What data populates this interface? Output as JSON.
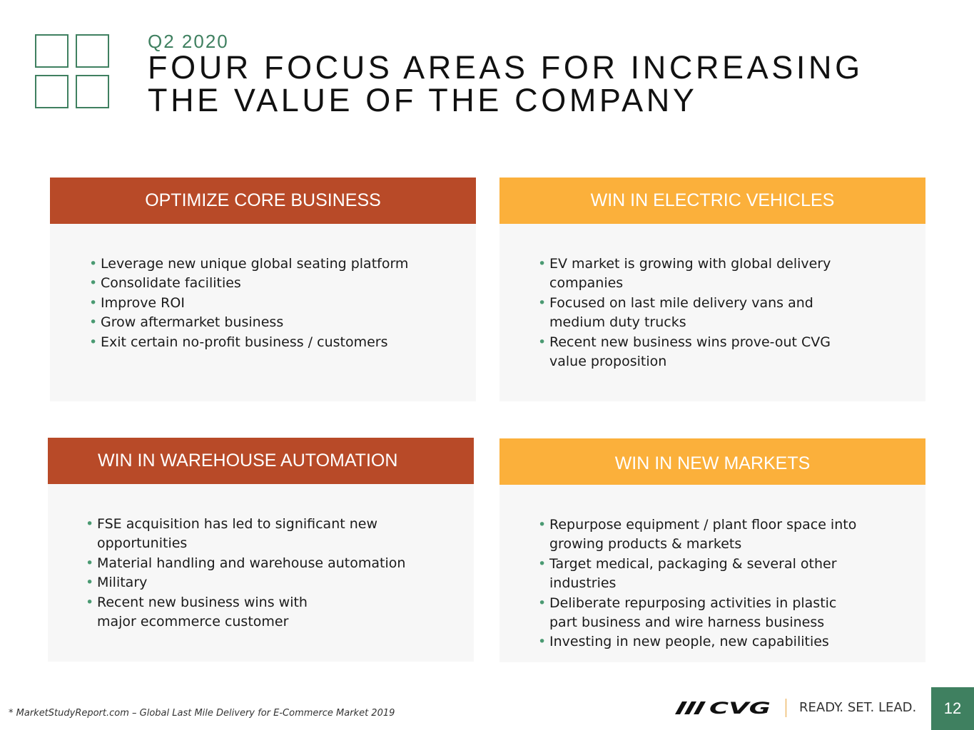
{
  "header": {
    "eyebrow": "Q2 2020",
    "title_line1": "FOUR FOCUS AREAS FOR INCREASING",
    "title_line2": "THE VALUE OF THE COMPANY"
  },
  "cards": [
    {
      "title": "OPTIMIZE CORE BUSINESS",
      "color": "#b84a28",
      "bullets": [
        "Leverage new unique global seating platform",
        "Consolidate facilities",
        "Improve ROI",
        "Grow aftermarket business",
        "Exit certain no-profit business / customers"
      ]
    },
    {
      "title": "WIN IN ELECTRIC VEHICLES",
      "color": "#fbb03b",
      "bullets": [
        "EV market is growing with global delivery companies",
        "Focused on last mile delivery vans and medium duty trucks",
        "Recent new business wins prove-out CVG value proposition"
      ]
    },
    {
      "title": "WIN IN WAREHOUSE AUTOMATION",
      "color": "#b84a28",
      "bullets": [
        "FSE acquisition has led to significant new opportunities",
        "Material handling and warehouse automation",
        "Military",
        "Recent new business wins with major ecommerce customer"
      ]
    },
    {
      "title": "WIN IN NEW MARKETS",
      "color": "#fbb03b",
      "bullets": [
        "Repurpose equipment / plant floor space into growing products & markets",
        "Target medical, packaging & several other industries",
        "Deliberate repurposing activities in plastic part business and wire harness business",
        "Investing in new people, new capabilities"
      ]
    }
  ],
  "footer": {
    "footnote": "* MarketStudyReport.com – Global Last Mile Delivery for E-Commerce Market 2019",
    "logo_text": "CVG",
    "tagline": "READY. SET. LEAD.",
    "page_number": "12"
  },
  "colors": {
    "accent_green": "#3f8060",
    "rust": "#b84a28",
    "amber": "#fbb03b"
  }
}
